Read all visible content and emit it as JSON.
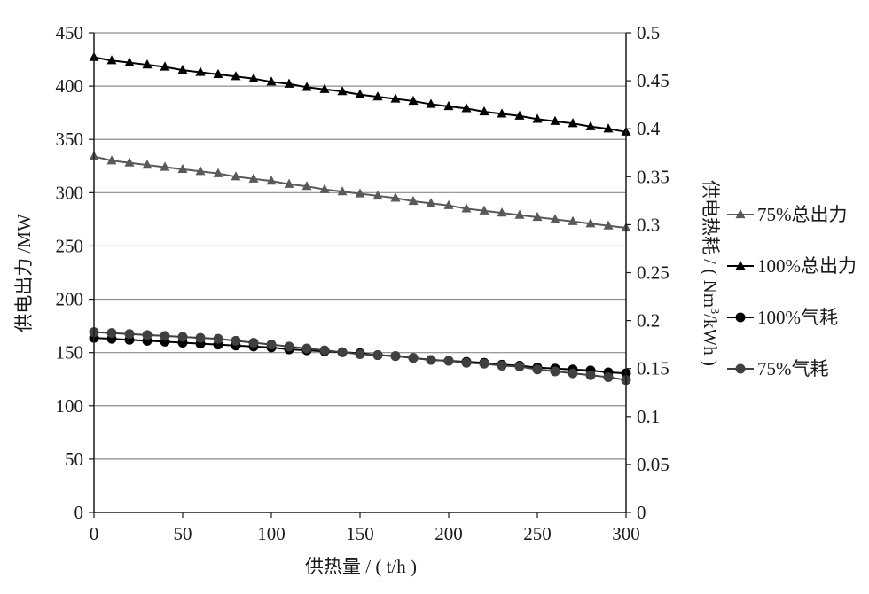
{
  "chart_data": {
    "type": "line",
    "title": "",
    "xlabel": "供热量 / ( t/h )",
    "ylabel": "供电出力 /MW",
    "y2label_parts": [
      "供电热耗 / ( Nm",
      "3",
      "/kWh )"
    ],
    "xlim": [
      0,
      300
    ],
    "ylim": [
      0,
      450
    ],
    "y2lim": [
      0,
      0.5
    ],
    "x_ticks": [
      "0",
      "50",
      "100",
      "150",
      "200",
      "250",
      "300"
    ],
    "y_ticks": [
      "0",
      "50",
      "100",
      "150",
      "200",
      "250",
      "300",
      "350",
      "400",
      "450"
    ],
    "y2_ticks": [
      "0",
      "0.05",
      "0.1",
      "0.15",
      "0.2",
      "0.25",
      "0.3",
      "0.35",
      "0.4",
      "0.45",
      "0.5"
    ],
    "grid": "horizontal",
    "legend_position": "right",
    "x": [
      0,
      10,
      20,
      30,
      40,
      50,
      60,
      70,
      80,
      90,
      100,
      110,
      120,
      130,
      140,
      150,
      160,
      170,
      180,
      190,
      200,
      210,
      220,
      230,
      240,
      250,
      260,
      270,
      280,
      290,
      300
    ],
    "series": [
      {
        "name": "75%总出力",
        "axis": "left",
        "marker": "triangle",
        "color": "#595959",
        "values": [
          334,
          330,
          328,
          326,
          324,
          322,
          320,
          318,
          315,
          313,
          311,
          308,
          306,
          303,
          301,
          299,
          297,
          295,
          292,
          290,
          288,
          285,
          283,
          281,
          279,
          277,
          275,
          273,
          271,
          269,
          267
        ]
      },
      {
        "name": "100%总出力",
        "axis": "left",
        "marker": "triangle",
        "color": "#000000",
        "values": [
          427,
          424,
          422,
          420,
          418,
          415,
          413,
          411,
          409,
          407,
          404,
          402,
          399,
          397,
          395,
          392,
          390,
          388,
          386,
          383,
          381,
          379,
          376,
          374,
          372,
          369,
          367,
          365,
          362,
          360,
          357
        ]
      },
      {
        "name": "100%气耗",
        "axis": "right",
        "marker": "circle",
        "color": "#000000",
        "values": [
          0.182,
          0.181,
          0.18,
          0.179,
          0.178,
          0.177,
          0.176,
          0.175,
          0.174,
          0.173,
          0.172,
          0.17,
          0.169,
          0.168,
          0.167,
          0.166,
          0.164,
          0.163,
          0.161,
          0.159,
          0.158,
          0.157,
          0.156,
          0.154,
          0.153,
          0.151,
          0.15,
          0.149,
          0.148,
          0.146,
          0.145
        ]
      },
      {
        "name": "75%气耗",
        "axis": "right",
        "marker": "circle",
        "color": "#404040",
        "values": [
          0.188,
          0.187,
          0.186,
          0.185,
          0.184,
          0.183,
          0.182,
          0.181,
          0.179,
          0.177,
          0.175,
          0.173,
          0.171,
          0.169,
          0.167,
          0.165,
          0.164,
          0.163,
          0.161,
          0.159,
          0.158,
          0.156,
          0.155,
          0.153,
          0.152,
          0.149,
          0.147,
          0.145,
          0.143,
          0.141,
          0.138
        ]
      }
    ]
  }
}
